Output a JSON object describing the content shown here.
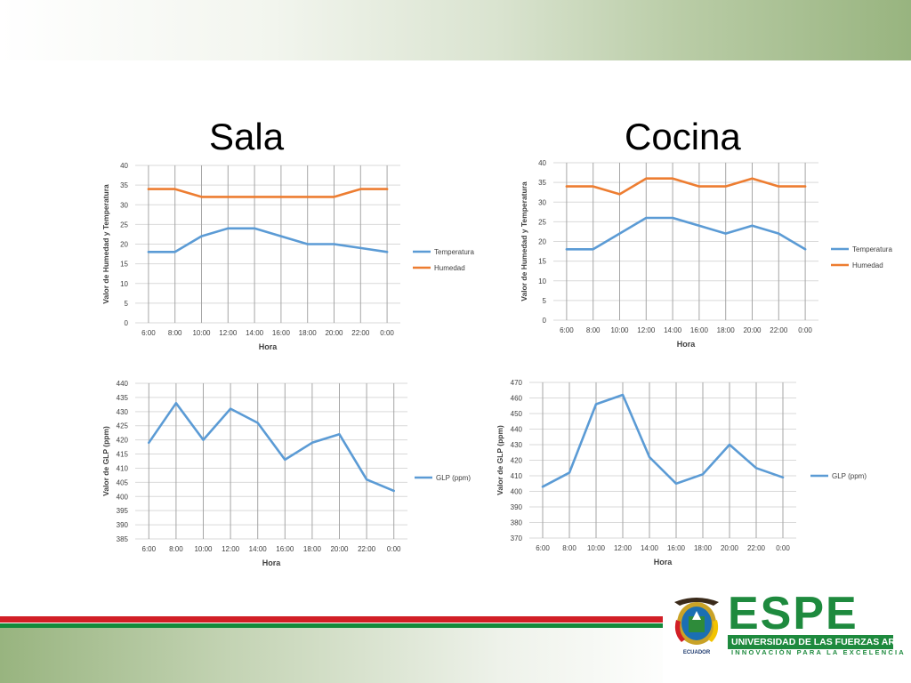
{
  "titles": {
    "sala": "Sala",
    "cocina": "Cocina"
  },
  "colors": {
    "temperatura": "#5b9bd5",
    "humedad": "#ed7d31",
    "glp": "#5b9bd5",
    "espe_green": "#1e8a3e"
  },
  "brand": {
    "name": "ESPE",
    "subtitle": "UNIVERSIDAD DE LAS FUERZAS ARMADAS",
    "motto": "INNOVACIÓN PARA LA EXCELENCIA",
    "crest_caption": "ECUADOR"
  },
  "chart_data": [
    {
      "type": "line",
      "room": "Sala",
      "categories": [
        "6:00",
        "8:00",
        "10:00",
        "12:00",
        "14:00",
        "16:00",
        "18:00",
        "20:00",
        "22:00",
        "0:00"
      ],
      "series": [
        {
          "name": "Temperatura",
          "values": [
            18,
            18,
            22,
            24,
            24,
            22,
            20,
            20,
            19,
            18
          ]
        },
        {
          "name": "Humedad",
          "values": [
            34,
            34,
            32,
            32,
            32,
            32,
            32,
            32,
            34,
            34
          ]
        }
      ],
      "xlabel": "Hora",
      "ylabel": "Valor de Humedad y Temperatura",
      "ylim": [
        0,
        40
      ],
      "yticks": [
        0,
        5,
        10,
        15,
        20,
        25,
        30,
        35,
        40
      ],
      "legend": "right",
      "grid": true
    },
    {
      "type": "line",
      "room": "Cocina",
      "categories": [
        "6:00",
        "8:00",
        "10:00",
        "12:00",
        "14:00",
        "16:00",
        "18:00",
        "20:00",
        "22:00",
        "0:00"
      ],
      "series": [
        {
          "name": "Temperatura",
          "values": [
            18,
            18,
            22,
            26,
            26,
            24,
            22,
            24,
            22,
            18
          ]
        },
        {
          "name": "Humedad",
          "values": [
            34,
            34,
            32,
            36,
            36,
            34,
            34,
            36,
            34,
            34
          ]
        }
      ],
      "xlabel": "Hora",
      "ylabel": "Valor de Humedad y Temperatura",
      "ylim": [
        0,
        40
      ],
      "yticks": [
        0,
        5,
        10,
        15,
        20,
        25,
        30,
        35,
        40
      ],
      "legend": "right",
      "grid": true
    },
    {
      "type": "line",
      "room": "Sala",
      "categories": [
        "6:00",
        "8:00",
        "10:00",
        "12:00",
        "14:00",
        "16:00",
        "18:00",
        "20:00",
        "22:00",
        "0:00"
      ],
      "series": [
        {
          "name": "GLP (ppm)",
          "values": [
            419,
            433,
            420,
            431,
            426,
            413,
            419,
            422,
            406,
            402
          ]
        }
      ],
      "xlabel": "Hora",
      "ylabel": "Valor de GLP (ppm)",
      "ylim": [
        385,
        440
      ],
      "yticks": [
        385,
        390,
        395,
        400,
        405,
        410,
        415,
        420,
        425,
        430,
        435,
        440
      ],
      "legend": "right",
      "grid": true
    },
    {
      "type": "line",
      "room": "Cocina",
      "categories": [
        "6:00",
        "8:00",
        "10:00",
        "12:00",
        "14:00",
        "16:00",
        "18:00",
        "20:00",
        "22:00",
        "0:00"
      ],
      "series": [
        {
          "name": "GLP (ppm)",
          "values": [
            403,
            412,
            456,
            462,
            422,
            405,
            411,
            430,
            415,
            409
          ]
        }
      ],
      "xlabel": "Hora",
      "ylabel": "Valor de GLP (ppm)",
      "ylim": [
        370,
        470
      ],
      "yticks": [
        370,
        380,
        390,
        400,
        410,
        420,
        430,
        440,
        450,
        460,
        470
      ],
      "legend": "right",
      "grid": true
    }
  ]
}
